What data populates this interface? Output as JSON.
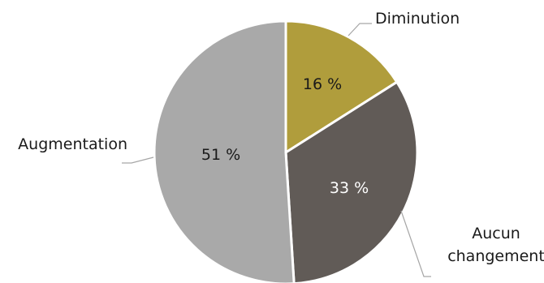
{
  "chart_data": {
    "type": "pie",
    "title": "",
    "categories": [
      "Diminution",
      "Aucun changement",
      "Augmentation"
    ],
    "values": [
      16,
      33,
      51
    ],
    "data_labels": [
      "16 %",
      "33 %",
      "51 %"
    ],
    "category_labels": [
      [
        "Diminution"
      ],
      [
        "Aucun",
        "changement"
      ],
      [
        "Augmentation"
      ]
    ],
    "colors": [
      "#b09d3c",
      "#615b57",
      "#a9a9a9"
    ],
    "label_colors": [
      "#1a1a1a",
      "#ffffff",
      "#1a1a1a"
    ],
    "start_angle": "12 o'clock",
    "direction": "clockwise",
    "legend": "none",
    "slice_borders": "white"
  }
}
